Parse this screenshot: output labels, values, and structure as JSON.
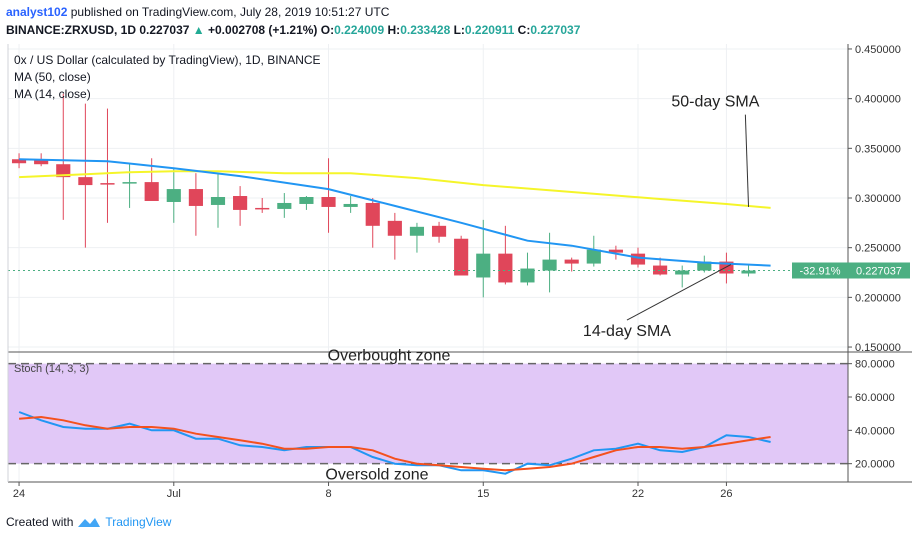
{
  "header": {
    "author": "analyst102",
    "published_text": "published on TradingView.com, July 28, 2019 10:51:27 UTC",
    "symbol": "BINANCE:ZRXUSD, 1D",
    "last": "0.227037",
    "change_arrow": "▲",
    "change": "+0.002708 (+1.21%)",
    "o_label": "O:",
    "o_val": "0.224009",
    "h_label": "H:",
    "h_val": "0.233428",
    "l_label": "L:",
    "l_val": "0.220911",
    "c_label": "C:",
    "c_val": "0.227037"
  },
  "legend": {
    "title": "0x / US Dollar (calculated by TradingView), 1D, BINANCE",
    "ma50": "MA (50, close)",
    "ma14": "MA (14, close)",
    "stoch": "Stoch (14, 3, 3)"
  },
  "footer": {
    "created_with": "Created with",
    "brand": "TradingView"
  },
  "colors": {
    "up": "#4caf82",
    "down": "#e0465a",
    "ma50": "#f5f52a",
    "ma14": "#2196f3",
    "stoch_k": "#2196f3",
    "stoch_d": "#f4511e",
    "zone": "#e1c8f7",
    "price_tag": "#4caf82"
  },
  "chart_data": [
    {
      "type": "candlestick",
      "title": "0x / US Dollar (calculated by TradingView), 1D, BINANCE",
      "x_labels": [
        {
          "index": 0,
          "label": "24"
        },
        {
          "index": 7,
          "label": "Jul"
        },
        {
          "index": 14,
          "label": "8"
        },
        {
          "index": 21,
          "label": "15"
        },
        {
          "index": 28,
          "label": "22"
        },
        {
          "index": 32,
          "label": "26"
        }
      ],
      "ylim": [
        0.145,
        0.455
      ],
      "y_ticks": [
        "0.150000",
        "0.200000",
        "0.250000",
        "0.300000",
        "0.350000",
        "0.400000",
        "0.450000"
      ],
      "y_tick_values": [
        0.15,
        0.2,
        0.25,
        0.3,
        0.35,
        0.4,
        0.45
      ],
      "num_slots": 38,
      "candles": [
        {
          "o": 0.339,
          "h": 0.345,
          "l": 0.33,
          "c": 0.335
        },
        {
          "o": 0.339,
          "h": 0.345,
          "l": 0.332,
          "c": 0.334
        },
        {
          "o": 0.334,
          "h": 0.405,
          "l": 0.278,
          "c": 0.321
        },
        {
          "o": 0.321,
          "h": 0.395,
          "l": 0.25,
          "c": 0.313
        },
        {
          "o": 0.315,
          "h": 0.39,
          "l": 0.275,
          "c": 0.314
        },
        {
          "o": 0.315,
          "h": 0.335,
          "l": 0.29,
          "c": 0.316
        },
        {
          "o": 0.316,
          "h": 0.34,
          "l": 0.3,
          "c": 0.297
        },
        {
          "o": 0.296,
          "h": 0.33,
          "l": 0.275,
          "c": 0.309
        },
        {
          "o": 0.309,
          "h": 0.325,
          "l": 0.262,
          "c": 0.292
        },
        {
          "o": 0.293,
          "h": 0.325,
          "l": 0.27,
          "c": 0.301
        },
        {
          "o": 0.302,
          "h": 0.312,
          "l": 0.272,
          "c": 0.288
        },
        {
          "o": 0.29,
          "h": 0.3,
          "l": 0.285,
          "c": 0.289
        },
        {
          "o": 0.289,
          "h": 0.305,
          "l": 0.28,
          "c": 0.295
        },
        {
          "o": 0.294,
          "h": 0.302,
          "l": 0.288,
          "c": 0.301
        },
        {
          "o": 0.301,
          "h": 0.34,
          "l": 0.265,
          "c": 0.291
        },
        {
          "o": 0.291,
          "h": 0.302,
          "l": 0.285,
          "c": 0.294
        },
        {
          "o": 0.295,
          "h": 0.3,
          "l": 0.25,
          "c": 0.272
        },
        {
          "o": 0.277,
          "h": 0.285,
          "l": 0.238,
          "c": 0.262
        },
        {
          "o": 0.262,
          "h": 0.275,
          "l": 0.245,
          "c": 0.271
        },
        {
          "o": 0.272,
          "h": 0.276,
          "l": 0.255,
          "c": 0.261
        },
        {
          "o": 0.259,
          "h": 0.262,
          "l": 0.222,
          "c": 0.222
        },
        {
          "o": 0.22,
          "h": 0.278,
          "l": 0.2,
          "c": 0.244
        },
        {
          "o": 0.244,
          "h": 0.272,
          "l": 0.213,
          "c": 0.215
        },
        {
          "o": 0.215,
          "h": 0.245,
          "l": 0.212,
          "c": 0.229
        },
        {
          "o": 0.227,
          "h": 0.265,
          "l": 0.205,
          "c": 0.238
        },
        {
          "o": 0.238,
          "h": 0.24,
          "l": 0.226,
          "c": 0.234
        },
        {
          "o": 0.234,
          "h": 0.262,
          "l": 0.231,
          "c": 0.248
        },
        {
          "o": 0.248,
          "h": 0.252,
          "l": 0.238,
          "c": 0.245
        },
        {
          "o": 0.244,
          "h": 0.25,
          "l": 0.23,
          "c": 0.233
        },
        {
          "o": 0.232,
          "h": 0.24,
          "l": 0.222,
          "c": 0.223
        },
        {
          "o": 0.223,
          "h": 0.232,
          "l": 0.21,
          "c": 0.227
        },
        {
          "o": 0.227,
          "h": 0.242,
          "l": 0.225,
          "c": 0.236
        },
        {
          "o": 0.236,
          "h": 0.245,
          "l": 0.214,
          "c": 0.224
        },
        {
          "o": 0.224,
          "h": 0.233,
          "l": 0.221,
          "c": 0.227
        }
      ],
      "ma50": [
        {
          "i": 0,
          "v": 0.321
        },
        {
          "i": 3,
          "v": 0.324
        },
        {
          "i": 5,
          "v": 0.326
        },
        {
          "i": 7,
          "v": 0.327
        },
        {
          "i": 9,
          "v": 0.327
        },
        {
          "i": 12,
          "v": 0.325
        },
        {
          "i": 15,
          "v": 0.325
        },
        {
          "i": 18,
          "v": 0.32
        },
        {
          "i": 21,
          "v": 0.313
        },
        {
          "i": 25,
          "v": 0.306
        },
        {
          "i": 29,
          "v": 0.299
        },
        {
          "i": 32,
          "v": 0.294
        },
        {
          "i": 34,
          "v": 0.29
        }
      ],
      "ma14": [
        {
          "i": 0,
          "v": 0.339
        },
        {
          "i": 4,
          "v": 0.337
        },
        {
          "i": 7,
          "v": 0.33
        },
        {
          "i": 10,
          "v": 0.322
        },
        {
          "i": 14,
          "v": 0.309
        },
        {
          "i": 17,
          "v": 0.292
        },
        {
          "i": 20,
          "v": 0.275
        },
        {
          "i": 23,
          "v": 0.257
        },
        {
          "i": 25,
          "v": 0.252
        },
        {
          "i": 28,
          "v": 0.24
        },
        {
          "i": 31,
          "v": 0.235
        },
        {
          "i": 34,
          "v": 0.232
        }
      ],
      "current_price": 0.227037,
      "price_tag": "0.227037",
      "price_change_tag": "-32.91%",
      "annotations": [
        {
          "text": "50-day SMA",
          "i_text": 31.5,
          "v_text": 0.392,
          "i_target": 33,
          "v_target": 0.291
        },
        {
          "text": "14-day SMA",
          "i_text": 27.5,
          "v_text": 0.161,
          "i_target": 32.2,
          "v_target": 0.233
        }
      ]
    },
    {
      "type": "line",
      "title": "Stoch (14, 3, 3)",
      "ylim": [
        9,
        87
      ],
      "y_ticks": [
        "20.0000",
        "40.0000",
        "60.0000",
        "80.0000"
      ],
      "y_tick_values": [
        20,
        40,
        60,
        80
      ],
      "overbought": 80,
      "oversold": 20,
      "zone_labels": {
        "overbought": "Overbought zone",
        "oversold": "Oversold zone"
      },
      "series": [
        {
          "name": "%K",
          "points": [
            {
              "i": 0,
              "v": 51
            },
            {
              "i": 1,
              "v": 46
            },
            {
              "i": 2,
              "v": 42
            },
            {
              "i": 3,
              "v": 41
            },
            {
              "i": 4,
              "v": 41
            },
            {
              "i": 5,
              "v": 44
            },
            {
              "i": 6,
              "v": 40
            },
            {
              "i": 7,
              "v": 40
            },
            {
              "i": 8,
              "v": 35
            },
            {
              "i": 9,
              "v": 35
            },
            {
              "i": 10,
              "v": 31
            },
            {
              "i": 11,
              "v": 30
            },
            {
              "i": 12,
              "v": 28
            },
            {
              "i": 13,
              "v": 30
            },
            {
              "i": 14,
              "v": 30
            },
            {
              "i": 15,
              "v": 30
            },
            {
              "i": 16,
              "v": 24
            },
            {
              "i": 17,
              "v": 20
            },
            {
              "i": 18,
              "v": 19
            },
            {
              "i": 19,
              "v": 19
            },
            {
              "i": 20,
              "v": 16
            },
            {
              "i": 21,
              "v": 16
            },
            {
              "i": 22,
              "v": 14
            },
            {
              "i": 23,
              "v": 20
            },
            {
              "i": 24,
              "v": 19
            },
            {
              "i": 25,
              "v": 23
            },
            {
              "i": 26,
              "v": 28
            },
            {
              "i": 27,
              "v": 29
            },
            {
              "i": 28,
              "v": 32
            },
            {
              "i": 29,
              "v": 28
            },
            {
              "i": 30,
              "v": 27
            },
            {
              "i": 31,
              "v": 30
            },
            {
              "i": 32,
              "v": 37
            },
            {
              "i": 33,
              "v": 36
            },
            {
              "i": 34,
              "v": 33
            }
          ]
        },
        {
          "name": "%D",
          "points": [
            {
              "i": 0,
              "v": 47
            },
            {
              "i": 1,
              "v": 48
            },
            {
              "i": 2,
              "v": 46
            },
            {
              "i": 3,
              "v": 43
            },
            {
              "i": 4,
              "v": 41
            },
            {
              "i": 5,
              "v": 42
            },
            {
              "i": 6,
              "v": 42
            },
            {
              "i": 7,
              "v": 41
            },
            {
              "i": 8,
              "v": 38
            },
            {
              "i": 9,
              "v": 36
            },
            {
              "i": 10,
              "v": 34
            },
            {
              "i": 11,
              "v": 32
            },
            {
              "i": 12,
              "v": 29
            },
            {
              "i": 13,
              "v": 29
            },
            {
              "i": 14,
              "v": 30
            },
            {
              "i": 15,
              "v": 30
            },
            {
              "i": 16,
              "v": 28
            },
            {
              "i": 17,
              "v": 23
            },
            {
              "i": 18,
              "v": 20
            },
            {
              "i": 19,
              "v": 19
            },
            {
              "i": 20,
              "v": 18
            },
            {
              "i": 21,
              "v": 17
            },
            {
              "i": 22,
              "v": 16
            },
            {
              "i": 23,
              "v": 17
            },
            {
              "i": 24,
              "v": 18
            },
            {
              "i": 25,
              "v": 20
            },
            {
              "i": 26,
              "v": 24
            },
            {
              "i": 27,
              "v": 28
            },
            {
              "i": 28,
              "v": 30
            },
            {
              "i": 29,
              "v": 30
            },
            {
              "i": 30,
              "v": 29
            },
            {
              "i": 31,
              "v": 30
            },
            {
              "i": 32,
              "v": 32
            },
            {
              "i": 33,
              "v": 34
            },
            {
              "i": 34,
              "v": 36
            }
          ]
        }
      ]
    }
  ]
}
